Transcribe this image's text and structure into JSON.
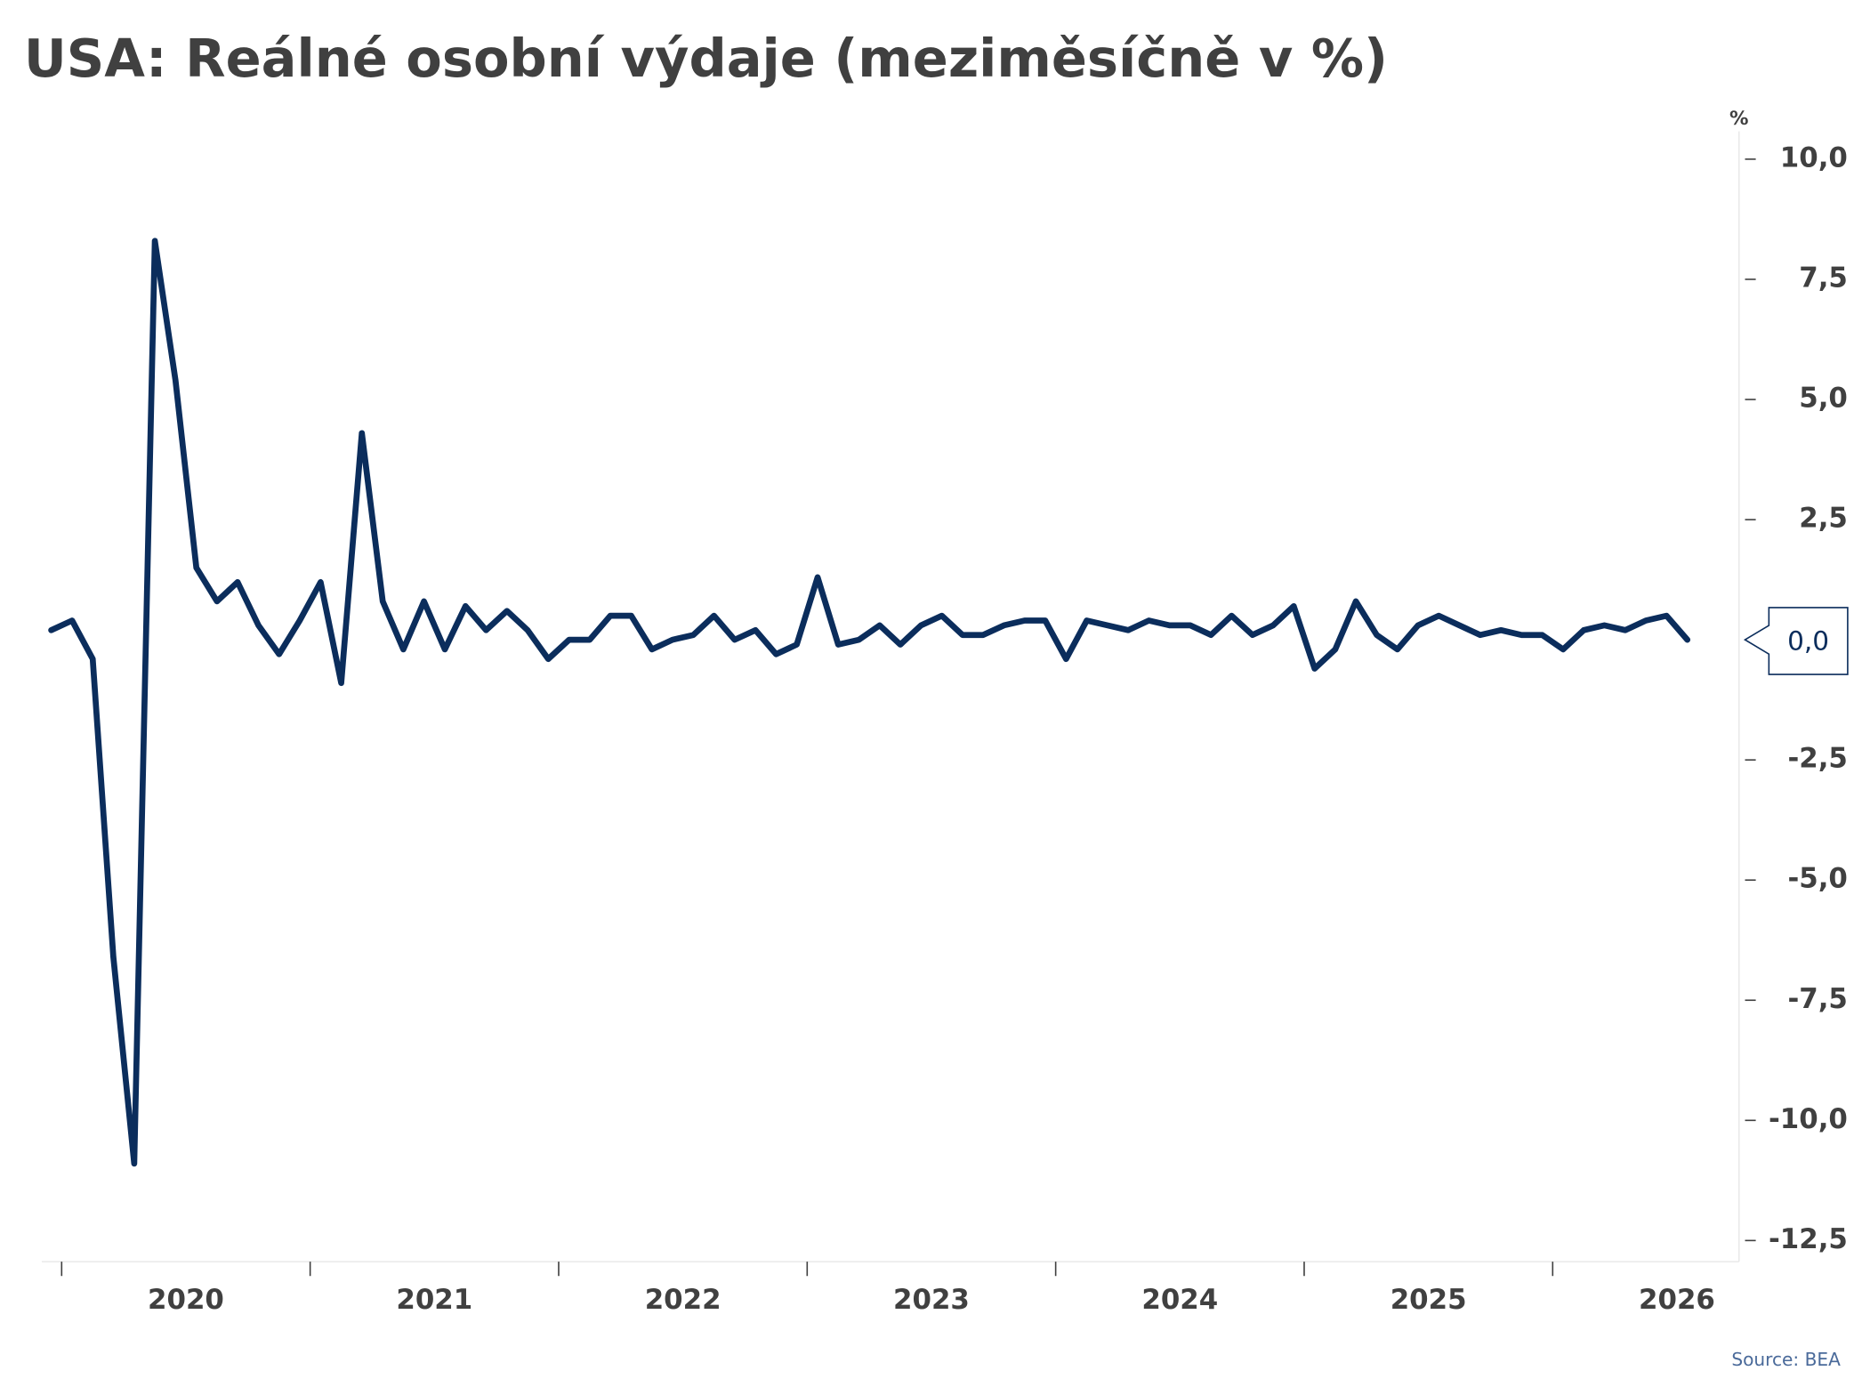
{
  "chart_data": {
    "type": "line",
    "title": "USA: Reálné osobní výdaje (meziměsíčně v %)",
    "y_unit": "%",
    "source": "Source: BEA",
    "x": [
      2019.958,
      2020.042,
      2020.125,
      2020.208,
      2020.292,
      2020.375,
      2020.458,
      2020.542,
      2020.625,
      2020.708,
      2020.792,
      2020.875,
      2020.958,
      2021.042,
      2021.125,
      2021.208,
      2021.292,
      2021.375,
      2021.458,
      2021.542,
      2021.625,
      2021.708,
      2021.792,
      2021.875,
      2021.958,
      2022.042,
      2022.125,
      2022.208,
      2022.292,
      2022.375,
      2022.458,
      2022.542,
      2022.625,
      2022.708,
      2022.792,
      2022.875,
      2022.958,
      2023.042,
      2023.125,
      2023.208,
      2023.292,
      2023.375,
      2023.458,
      2023.542,
      2023.625,
      2023.708,
      2023.792,
      2023.875,
      2023.958,
      2024.042,
      2024.125,
      2024.208,
      2024.292,
      2024.375,
      2024.458,
      2024.542,
      2024.625,
      2024.708,
      2024.792,
      2024.875,
      2024.958,
      2025.042,
      2025.125,
      2025.208,
      2025.292,
      2025.375,
      2025.458,
      2025.542,
      2025.625,
      2025.708,
      2025.792,
      2025.875,
      2025.958,
      2026.042,
      2026.125,
      2026.208,
      2026.292,
      2026.375,
      2026.458,
      2026.542
    ],
    "series": [
      {
        "name": "Reálné osobní výdaje",
        "color": "#0b2d5c",
        "values": [
          0.2,
          0.4,
          -0.4,
          -6.6,
          -10.9,
          8.3,
          5.4,
          1.5,
          0.8,
          1.2,
          0.3,
          -0.3,
          0.4,
          1.2,
          -0.9,
          4.3,
          0.8,
          -0.2,
          0.8,
          -0.2,
          0.7,
          0.2,
          0.6,
          0.2,
          -0.4,
          0.0,
          0.0,
          0.5,
          0.5,
          -0.2,
          0.0,
          0.1,
          0.5,
          0.0,
          0.2,
          -0.3,
          -0.1,
          1.3,
          -0.1,
          0.0,
          0.3,
          -0.1,
          0.3,
          0.5,
          0.1,
          0.1,
          0.3,
          0.4,
          0.4,
          -0.4,
          0.4,
          0.3,
          0.2,
          0.4,
          0.3,
          0.3,
          0.1,
          0.5,
          0.1,
          0.3,
          0.7,
          -0.6,
          -0.2,
          0.8,
          0.1,
          -0.2,
          0.3,
          0.5,
          0.3,
          0.1,
          0.2,
          0.1,
          0.1,
          -0.2,
          0.2,
          0.3,
          0.2,
          0.4,
          0.5,
          0.0
        ],
        "value_labels": [
          null,
          null,
          null,
          null,
          null,
          null,
          null,
          null,
          null,
          null,
          null,
          null,
          null,
          null,
          null,
          null,
          null,
          null,
          null,
          null,
          null,
          null,
          null,
          null,
          null,
          null,
          null,
          null,
          null,
          null,
          null,
          null,
          null,
          null,
          null,
          null,
          null,
          null,
          null,
          null,
          null,
          null,
          null,
          null,
          null,
          null,
          null,
          null,
          null,
          null,
          null,
          null,
          null,
          null,
          null,
          null,
          null,
          null,
          null,
          null,
          null,
          null,
          null,
          null,
          null,
          null,
          null,
          null,
          null,
          null,
          null,
          null,
          null,
          null,
          null,
          null,
          null,
          null,
          null,
          "0,0"
        ]
      }
    ],
    "xlim": [
      2019.92,
      2026.75
    ],
    "xticks": [
      {
        "value": 2020,
        "label": "2020"
      },
      {
        "value": 2021,
        "label": "2021"
      },
      {
        "value": 2022,
        "label": "2022"
      },
      {
        "value": 2023,
        "label": "2023"
      },
      {
        "value": 2024,
        "label": "2024"
      },
      {
        "value": 2025,
        "label": "2025"
      },
      {
        "value": 2026,
        "label": "2026"
      }
    ],
    "ylim": [
      -12.94,
      10.58
    ],
    "yticks": [
      {
        "value": 10,
        "label": "10,0"
      },
      {
        "value": 7.5,
        "label": "7,5"
      },
      {
        "value": 5,
        "label": "5,0"
      },
      {
        "value": 2.5,
        "label": "2,5"
      },
      {
        "value": 0,
        "label": "0,0"
      },
      {
        "value": -2.5,
        "label": "-2,5"
      },
      {
        "value": -5,
        "label": "-5,0"
      },
      {
        "value": -7.5,
        "label": "-7,5"
      },
      {
        "value": -10,
        "label": "-10,0"
      },
      {
        "value": -12.5,
        "label": "-12,5"
      }
    ],
    "grid": false
  }
}
